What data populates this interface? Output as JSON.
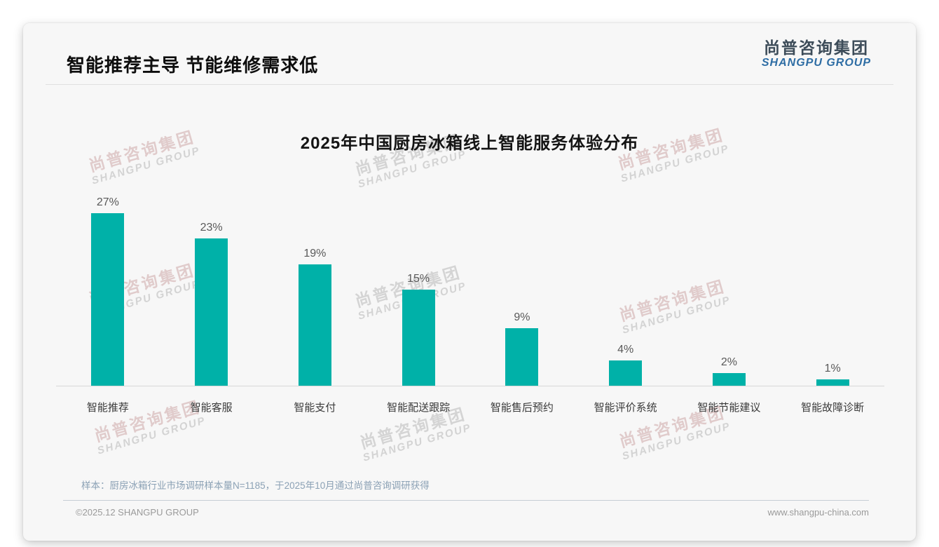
{
  "header": {
    "title": "智能推荐主导 节能维修需求低"
  },
  "logo": {
    "name_cn": "尚普咨询集团",
    "name_en": "SHANGPU GROUP"
  },
  "watermark": {
    "line1": "尚普咨询集团",
    "line2": "SHANGPU GROUP"
  },
  "chart_data": {
    "type": "bar",
    "title": "2025年中国厨房冰箱线上智能服务体验分布",
    "categories": [
      "智能推荐",
      "智能客服",
      "智能支付",
      "智能配送跟踪",
      "智能售后预约",
      "智能评价系统",
      "智能节能建议",
      "智能故障诊断"
    ],
    "values": [
      27,
      23,
      19,
      15,
      9,
      4,
      2,
      1
    ],
    "value_labels": [
      "27%",
      "23%",
      "19%",
      "15%",
      "9%",
      "4%",
      "2%",
      "1%"
    ],
    "unit": "%",
    "xlabel": "",
    "ylabel": "",
    "ylim": [
      0,
      28
    ],
    "grid": false,
    "legend": "none",
    "bar_color": "#00b1a8",
    "axis_line_color": "#d8d8d8"
  },
  "footer": {
    "sample_note": "样本：厨房冰箱行业市场调研样本量N=1185，于2025年10月通过尚普咨询调研获得",
    "copyright": "©2025.12 SHANGPU GROUP",
    "website": "www.shangpu-china.com"
  },
  "colors": {
    "accent": "#00b1a8",
    "logo_dark": "#3d4c59",
    "logo_blue": "#2e6da4"
  }
}
